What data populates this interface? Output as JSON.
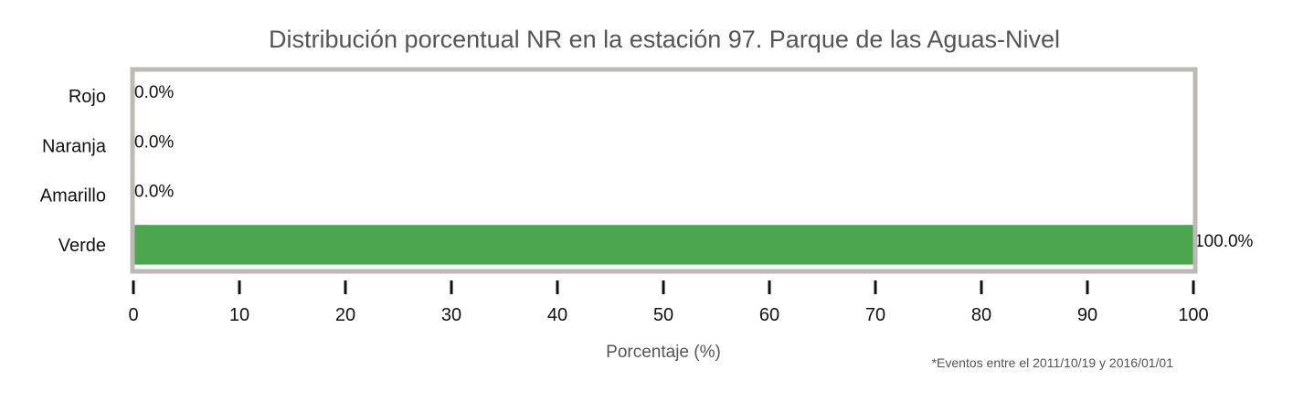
{
  "chart_data": {
    "type": "bar",
    "orientation": "horizontal",
    "title": "Distribución porcentual NR en la estación 97. Parque de las Aguas-Nivel",
    "xlabel": "Porcentaje (%)",
    "ylabel": "",
    "categories": [
      "Rojo",
      "Naranja",
      "Amarillo",
      "Verde"
    ],
    "values": [
      0.0,
      0.0,
      0.0,
      100.0
    ],
    "value_labels": [
      "0.0%",
      "0.0%",
      "0.0%",
      "100.0%"
    ],
    "bar_colors": [
      "#E53935",
      "#FB8C00",
      "#FDD835",
      "#4CA64F"
    ],
    "xlim": [
      0,
      100
    ],
    "xticks": [
      0,
      10,
      20,
      30,
      40,
      50,
      60,
      70,
      80,
      90,
      100
    ],
    "grid": false,
    "legend": "none",
    "frame_color": "#BDB9B5"
  },
  "footnote": "*Eventos entre el 2011/10/19 y 2016/01/01"
}
